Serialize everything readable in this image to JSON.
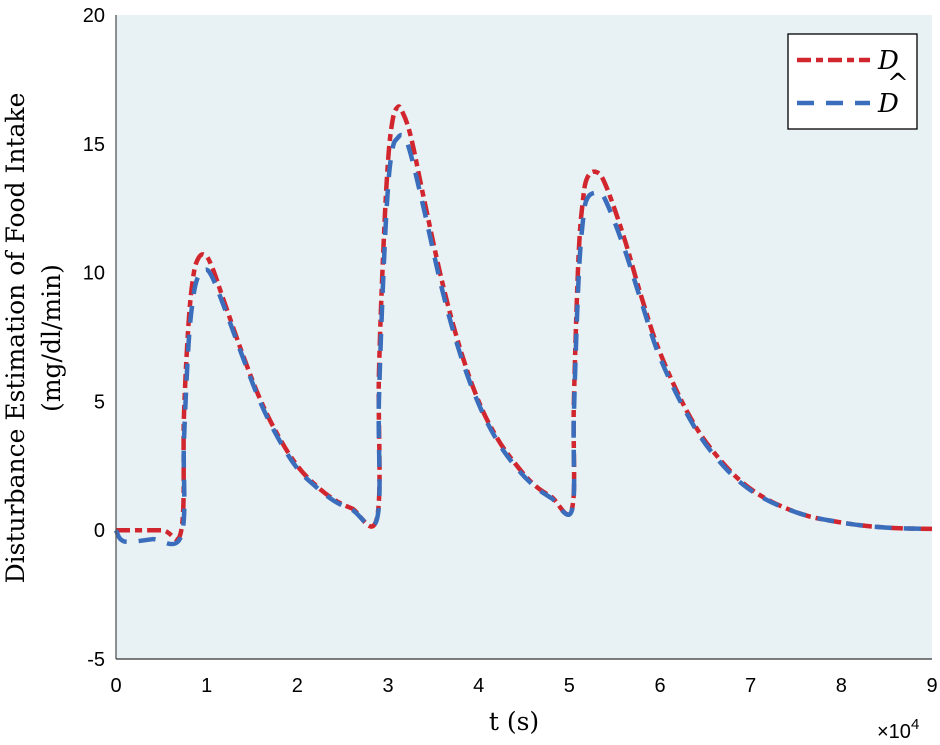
{
  "chart_data": {
    "type": "line",
    "title": "",
    "xlabel": "t (s)",
    "ylabel_line1": "Disturbance Estimation of Food Intake",
    "ylabel_line2": "(mg/dl/min)",
    "x_multiplier": "×10",
    "x_multiplier_exp": "4",
    "xlim": [
      0,
      9
    ],
    "ylim": [
      -5,
      20
    ],
    "x_ticks": [
      "0",
      "1",
      "2",
      "3",
      "4",
      "5",
      "6",
      "7",
      "8",
      "9"
    ],
    "y_ticks": [
      "-5",
      "0",
      "5",
      "10",
      "15",
      "20"
    ],
    "grid": false,
    "plot_background": "#e8f1f3",
    "legend": {
      "position": "upper right",
      "entries": [
        {
          "label": "D",
          "hat": false,
          "color": "#d2262e",
          "style": "dash-dot"
        },
        {
          "label": "D",
          "hat": true,
          "color": "#3a6dbb",
          "style": "dashed"
        }
      ]
    },
    "series": [
      {
        "name": "D",
        "color": "#d2262e",
        "x": [
          0,
          0.5,
          0.72,
          0.75,
          0.8,
          0.85,
          0.9,
          0.97,
          1.05,
          1.2,
          1.4,
          1.6,
          1.8,
          2.0,
          2.2,
          2.4,
          2.6,
          2.88,
          2.9,
          2.95,
          3.0,
          3.05,
          3.1,
          3.15,
          3.25,
          3.4,
          3.6,
          3.8,
          4.0,
          4.2,
          4.4,
          4.6,
          4.8,
          5.03,
          5.05,
          5.1,
          5.15,
          5.2,
          5.3,
          5.4,
          5.6,
          5.8,
          6.0,
          6.3,
          6.6,
          7.0,
          7.5,
          8.0,
          8.5,
          9.0
        ],
        "y": [
          0,
          0,
          0,
          4.5,
          8.0,
          9.8,
          10.5,
          10.7,
          10.3,
          8.8,
          6.8,
          5.0,
          3.6,
          2.5,
          1.75,
          1.2,
          0.85,
          0.5,
          6.0,
          11.0,
          14.3,
          15.9,
          16.4,
          16.3,
          15.3,
          12.8,
          9.6,
          7.0,
          5.0,
          3.6,
          2.6,
          1.8,
          1.3,
          0.85,
          5.0,
          10.5,
          12.8,
          13.7,
          13.9,
          13.4,
          11.4,
          9.0,
          6.9,
          4.6,
          3.0,
          1.6,
          0.7,
          0.3,
          0.1,
          0.05
        ]
      },
      {
        "name": "D̂",
        "color": "#3a6dbb",
        "x": [
          0,
          0.05,
          0.15,
          0.4,
          0.72,
          0.75,
          0.8,
          0.85,
          0.9,
          0.97,
          1.05,
          1.2,
          1.4,
          1.6,
          1.8,
          2.0,
          2.2,
          2.4,
          2.6,
          2.88,
          2.9,
          2.95,
          3.0,
          3.05,
          3.1,
          3.17,
          3.25,
          3.4,
          3.6,
          3.8,
          4.0,
          4.2,
          4.4,
          4.6,
          4.8,
          5.03,
          5.05,
          5.1,
          5.15,
          5.2,
          5.32,
          5.4,
          5.6,
          5.8,
          6.0,
          6.3,
          6.6,
          7.0,
          7.5,
          8.0,
          8.5,
          9.0
        ],
        "y": [
          0,
          -0.35,
          -0.45,
          -0.35,
          -0.2,
          3.5,
          7.2,
          9.0,
          9.8,
          10.1,
          9.9,
          8.6,
          6.7,
          4.9,
          3.5,
          2.4,
          1.7,
          1.15,
          0.8,
          0.45,
          5.0,
          10.0,
          13.3,
          14.8,
          15.2,
          15.3,
          14.6,
          12.4,
          9.3,
          6.8,
          4.9,
          3.5,
          2.5,
          1.75,
          1.25,
          0.8,
          4.5,
          9.6,
          12.0,
          12.9,
          13.1,
          12.8,
          11.0,
          8.8,
          6.7,
          4.5,
          2.9,
          1.55,
          0.7,
          0.3,
          0.1,
          0.05
        ]
      }
    ]
  }
}
